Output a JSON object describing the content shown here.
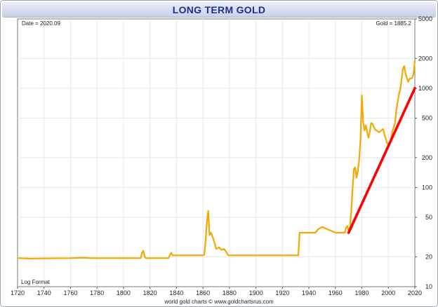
{
  "chart_data": {
    "type": "line",
    "title": "LONG TERM GOLD",
    "subtitle": "",
    "xlabel": "",
    "ylabel": "",
    "date_label": "Date = 2020.09",
    "value_label": "Gold = 1885.2",
    "scale_label": "Log Format",
    "footer": "world gold charts © www.goldchartsrus.com",
    "xlim": [
      1720,
      2020
    ],
    "ylim": [
      10,
      5000
    ],
    "y_scale": "log",
    "y_axis_side": "right",
    "grid": true,
    "x_ticks": [
      "1720",
      "1740",
      "1760",
      "1780",
      "1800",
      "1820",
      "1840",
      "1860",
      "1880",
      "1900",
      "1920",
      "1940",
      "1960",
      "1980",
      "2000",
      "2020"
    ],
    "y_ticks": [
      "10",
      "20",
      "50",
      "100",
      "200",
      "500",
      "1000",
      "2000",
      "5000"
    ],
    "series": [
      {
        "color": "#f5a800",
        "x": [
          1720,
          1730,
          1740,
          1760,
          1770,
          1775,
          1800,
          1813,
          1814,
          1815,
          1816,
          1817,
          1834,
          1835,
          1836,
          1837,
          1860,
          1861,
          1862,
          1863,
          1864,
          1865,
          1866,
          1868,
          1870,
          1872,
          1874,
          1876,
          1878,
          1879,
          1900,
          1920,
          1932,
          1933,
          1934,
          1945,
          1947,
          1950,
          1960,
          1967,
          1968,
          1969,
          1970,
          1971,
          1972,
          1973,
          1974,
          1975,
          1976,
          1977,
          1978,
          1979,
          1980,
          1981,
          1982,
          1983,
          1984,
          1985,
          1986,
          1987,
          1988,
          1990,
          1993,
          1996,
          1999,
          2001,
          2003,
          2005,
          2006,
          2008,
          2009,
          2010,
          2011,
          2012,
          2013,
          2014,
          2015,
          2016,
          2017,
          2018,
          2019,
          2020
        ],
        "y": [
          19.4,
          19.2,
          19.3,
          19.4,
          19.6,
          19.4,
          19.4,
          19.4,
          22,
          23,
          20,
          19.4,
          19.4,
          20.8,
          22,
          20.7,
          20.7,
          21,
          29,
          45,
          58,
          33,
          35,
          30,
          24,
          25,
          23.5,
          24,
          22,
          20.7,
          20.7,
          20.7,
          20.7,
          35,
          35,
          35,
          38,
          40,
          35,
          35,
          39,
          41,
          36,
          40,
          58,
          97,
          154,
          160,
          125,
          148,
          193,
          307,
          850,
          460,
          376,
          424,
          360,
          317,
          368,
          447,
          437,
          383,
          360,
          388,
          279,
          271,
          364,
          445,
          603,
          872,
          972,
          1225,
          1572,
          1669,
          1411,
          1266,
          1160,
          1250,
          1257,
          1268,
          1393,
          1885
        ]
      },
      {
        "color": "#ff0000",
        "x": [
          1970,
          2020
        ],
        "y": [
          35,
          1000
        ]
      }
    ]
  }
}
